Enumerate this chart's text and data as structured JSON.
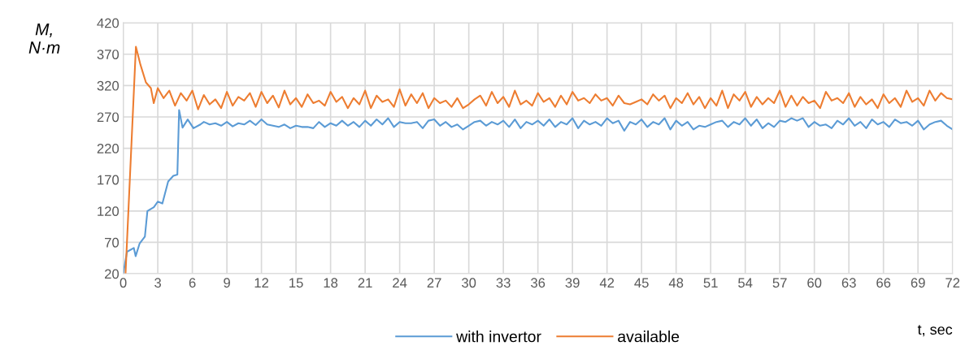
{
  "chart_data": {
    "type": "line",
    "xlabel": "t, sec",
    "ylabel": "M,\nN·m",
    "xlim": [
      0,
      72
    ],
    "xticks": [
      0,
      3,
      6,
      9,
      12,
      15,
      18,
      21,
      24,
      27,
      30,
      33,
      36,
      39,
      42,
      45,
      48,
      51,
      54,
      57,
      60,
      63,
      66,
      69,
      72
    ],
    "ylim": [
      20,
      420
    ],
    "yticks": [
      20,
      70,
      120,
      170,
      220,
      270,
      320,
      370,
      420
    ],
    "grid": true,
    "legend": "bottom",
    "marker": "none",
    "line_style": "solid",
    "series": [
      {
        "name": "with invertor",
        "color": "#5b9bd5",
        "x": [
          0,
          0.33,
          0.92,
          1.08,
          1.42,
          1.88,
          2.1,
          2.66,
          3.0,
          3.4,
          3.9,
          4.35,
          4.7,
          4.85,
          5.15,
          5.6,
          6.1,
          6.7,
          7,
          7.5,
          8,
          8.5,
          9,
          9.5,
          10,
          10.5,
          11,
          11.5,
          12,
          12.5,
          13,
          13.5,
          14,
          14.5,
          15,
          15.5,
          16,
          16.5,
          17,
          17.5,
          18,
          18.5,
          19,
          19.5,
          20,
          20.5,
          21,
          21.5,
          22,
          22.5,
          23,
          23.5,
          24,
          24.5,
          25,
          25.5,
          26,
          26.5,
          27,
          27.5,
          28,
          28.5,
          29,
          29.5,
          30,
          30.5,
          31,
          31.5,
          32,
          32.5,
          33,
          33.5,
          34,
          34.5,
          35,
          35.5,
          36,
          36.5,
          37,
          37.5,
          38,
          38.5,
          39,
          39.5,
          40,
          40.5,
          41,
          41.5,
          42,
          42.5,
          43,
          43.5,
          44,
          44.5,
          45,
          45.5,
          46,
          46.5,
          47,
          47.5,
          48,
          48.5,
          49,
          49.5,
          50,
          50.5,
          51,
          51.5,
          52,
          52.5,
          53,
          53.5,
          54,
          54.5,
          55,
          55.5,
          56,
          56.5,
          57,
          57.5,
          58,
          58.5,
          59,
          59.5,
          60,
          60.5,
          61,
          61.5,
          62,
          62.5,
          63,
          63.5,
          64,
          64.5,
          65,
          65.5,
          66,
          66.5,
          67,
          67.5,
          68,
          68.5,
          69,
          69.5,
          70,
          70.5,
          71,
          71.5,
          72
        ],
        "values": [
          20,
          55,
          61,
          48,
          68,
          79,
          120,
          126,
          135,
          132,
          167,
          176,
          178,
          281,
          253,
          266,
          252,
          258,
          262,
          258,
          260,
          256,
          262,
          255,
          260,
          258,
          264,
          257,
          266,
          258,
          256,
          254,
          258,
          252,
          256,
          254,
          254,
          252,
          262,
          254,
          260,
          256,
          264,
          256,
          262,
          254,
          264,
          256,
          266,
          258,
          268,
          254,
          262,
          260,
          260,
          262,
          252,
          264,
          266,
          256,
          262,
          254,
          258,
          250,
          256,
          262,
          264,
          256,
          262,
          258,
          264,
          254,
          266,
          252,
          262,
          258,
          264,
          256,
          266,
          254,
          262,
          258,
          268,
          252,
          264,
          258,
          262,
          256,
          268,
          260,
          264,
          248,
          262,
          258,
          266,
          254,
          262,
          258,
          268,
          250,
          264,
          256,
          262,
          250,
          256,
          254,
          258,
          262,
          264,
          254,
          262,
          258,
          268,
          256,
          266,
          252,
          260,
          254,
          264,
          262,
          268,
          264,
          268,
          254,
          262,
          256,
          258,
          252,
          264,
          258,
          268,
          256,
          262,
          252,
          266,
          258,
          262,
          254,
          266,
          260,
          262,
          256,
          264,
          250,
          258,
          262,
          264,
          256,
          250
        ]
      },
      {
        "name": "available",
        "color": "#ed7d31",
        "x": [
          0.2,
          1.1,
          1.5,
          1.97,
          2.4,
          2.65,
          3.0,
          3.5,
          4,
          4.5,
          5,
          5.5,
          6,
          6.5,
          7,
          7.5,
          8,
          8.5,
          9,
          9.5,
          10,
          10.5,
          11,
          11.5,
          12,
          12.5,
          13,
          13.5,
          14,
          14.5,
          15,
          15.5,
          16,
          16.5,
          17,
          17.5,
          18,
          18.5,
          19,
          19.5,
          20,
          20.5,
          21,
          21.5,
          22,
          22.5,
          23,
          23.5,
          24,
          24.5,
          25,
          25.5,
          26,
          26.5,
          27,
          27.5,
          28,
          28.5,
          29,
          29.5,
          30,
          30.5,
          31,
          31.5,
          32,
          32.5,
          33,
          33.5,
          34,
          34.5,
          35,
          35.5,
          36,
          36.5,
          37,
          37.5,
          38,
          38.5,
          39,
          39.5,
          40,
          40.5,
          41,
          41.5,
          42,
          42.5,
          43,
          43.5,
          44,
          44.5,
          45,
          45.5,
          46,
          46.5,
          47,
          47.5,
          48,
          48.5,
          49,
          49.5,
          50,
          50.5,
          51,
          51.5,
          52,
          52.5,
          53,
          53.5,
          54,
          54.5,
          55,
          55.5,
          56,
          56.5,
          57,
          57.5,
          58,
          58.5,
          59,
          59.5,
          60,
          60.5,
          61,
          61.5,
          62,
          62.5,
          63,
          63.5,
          64,
          64.5,
          65,
          65.5,
          66,
          66.5,
          67,
          67.5,
          68,
          68.5,
          69,
          69.5,
          70,
          70.5,
          71,
          71.5,
          72
        ],
        "values": [
          20,
          382,
          353,
          325,
          316,
          292,
          316,
          300,
          312,
          288,
          308,
          296,
          312,
          282,
          305,
          290,
          298,
          284,
          310,
          288,
          302,
          296,
          308,
          286,
          310,
          292,
          304,
          285,
          312,
          290,
          300,
          286,
          306,
          292,
          296,
          288,
          310,
          294,
          302,
          284,
          300,
          290,
          312,
          284,
          304,
          294,
          298,
          286,
          314,
          288,
          306,
          292,
          308,
          284,
          300,
          292,
          296,
          286,
          300,
          284,
          290,
          298,
          304,
          288,
          310,
          292,
          302,
          286,
          312,
          290,
          296,
          288,
          308,
          294,
          300,
          286,
          304,
          290,
          310,
          296,
          300,
          292,
          306,
          296,
          300,
          288,
          304,
          292,
          290,
          294,
          298,
          290,
          306,
          296,
          304,
          284,
          300,
          292,
          308,
          290,
          302,
          284,
          300,
          288,
          312,
          284,
          306,
          296,
          310,
          286,
          302,
          290,
          300,
          292,
          312,
          286,
          304,
          288,
          302,
          292,
          296,
          284,
          310,
          296,
          300,
          292,
          308,
          286,
          302,
          290,
          298,
          284,
          306,
          292,
          300,
          286,
          312,
          294,
          300,
          288,
          312,
          296,
          308,
          300,
          298
        ]
      }
    ]
  }
}
